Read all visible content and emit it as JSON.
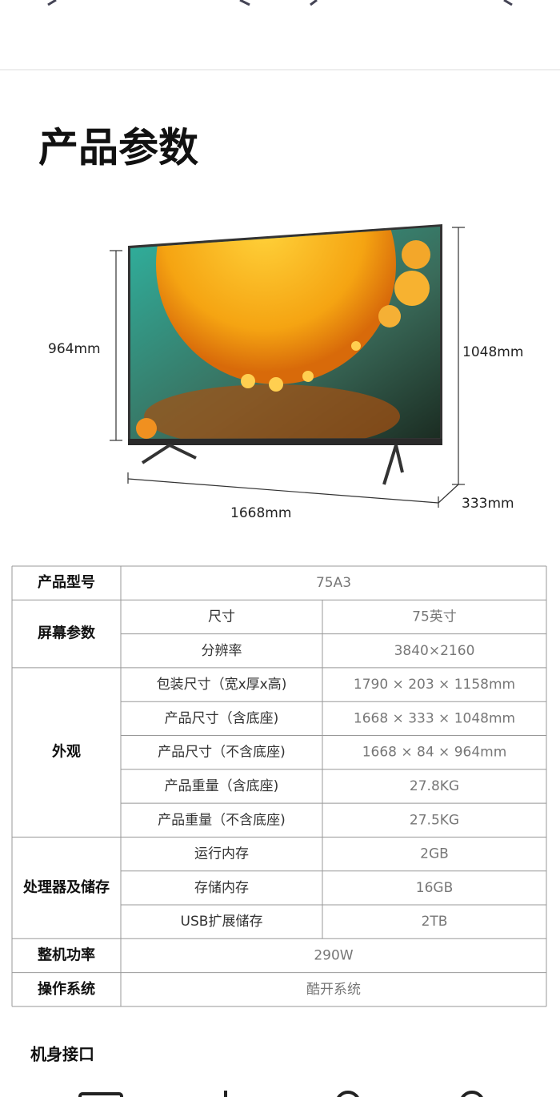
{
  "header": {
    "title": "产品参数"
  },
  "dimensions": {
    "height_no_stand": "964mm",
    "height_with_stand": "1048mm",
    "width": "1668mm",
    "depth": "333mm"
  },
  "table": {
    "groups": [
      {
        "label": "产品型号",
        "value": "75A3"
      },
      {
        "label": "屏幕参数",
        "rows": [
          [
            "尺寸",
            "75英寸"
          ],
          [
            "分辨率",
            "3840×2160"
          ]
        ]
      },
      {
        "label": "外观",
        "rows": [
          [
            "包装尺寸（宽x厚x高)",
            "1790 × 203 × 1158mm"
          ],
          [
            "产品尺寸（含底座)",
            "1668 × 333 × 1048mm"
          ],
          [
            "产品尺寸（不含底座)",
            "1668 × 84 × 964mm"
          ],
          [
            "产品重量（含底座)",
            "27.8KG"
          ],
          [
            "产品重量（不含底座)",
            "27.5KG"
          ]
        ]
      },
      {
        "label": "处理器及储存",
        "rows": [
          [
            "运行内存",
            "2GB"
          ],
          [
            "存储内存",
            "16GB"
          ],
          [
            "USB扩展储存",
            "2TB"
          ]
        ]
      },
      {
        "label": "整机功率",
        "value": "290W"
      },
      {
        "label": "操作系统",
        "value": "酷开系统"
      }
    ]
  },
  "section": {
    "title": "机身接口"
  }
}
